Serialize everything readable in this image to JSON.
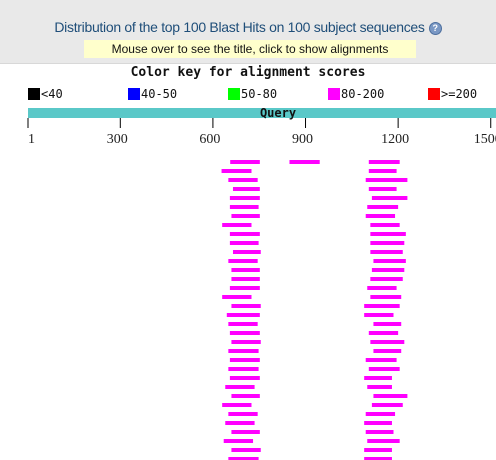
{
  "header": {
    "title": "Distribution of the top 100 Blast Hits on 100 subject sequences",
    "hint": "Mouse over to see the title, click to show alignments",
    "help_icon": "question-circle-icon"
  },
  "color_key": {
    "title": "Color key for alignment scores",
    "items": [
      {
        "label": "<40",
        "color": "#000000"
      },
      {
        "label": "40-50",
        "color": "#0000ff"
      },
      {
        "label": "50-80",
        "color": "#00ff00"
      },
      {
        "label": "80-200",
        "color": "#ff00ff"
      },
      {
        "label": ">=200",
        "color": "#ff0000"
      }
    ]
  },
  "chart_data": {
    "type": "bar",
    "query_label": "Query",
    "query_color": "#5ac8c8",
    "hit_color": "#ff00ff",
    "x_ticks": [
      1,
      300,
      600,
      900,
      1200,
      1500
    ],
    "xlim": [
      1,
      1550
    ],
    "hits": [
      [
        [
          656,
          752
        ],
        [
          848,
          946
        ],
        [
          1105,
          1205
        ]
      ],
      [
        [
          628,
          725
        ],
        [
          1105,
          1195
        ]
      ],
      [
        [
          650,
          745
        ],
        [
          1095,
          1230
        ]
      ],
      [
        [
          665,
          752
        ],
        [
          1105,
          1195
        ]
      ],
      [
        [
          655,
          752
        ],
        [
          1115,
          1230
        ]
      ],
      [
        [
          655,
          748
        ],
        [
          1100,
          1200
        ]
      ],
      [
        [
          660,
          752
        ],
        [
          1095,
          1190
        ]
      ],
      [
        [
          630,
          725
        ],
        [
          1110,
          1205
        ]
      ],
      [
        [
          655,
          752
        ],
        [
          1110,
          1225
        ]
      ],
      [
        [
          655,
          748
        ],
        [
          1110,
          1220
        ]
      ],
      [
        [
          665,
          755
        ],
        [
          1110,
          1215
        ]
      ],
      [
        [
          650,
          745
        ],
        [
          1120,
          1225
        ]
      ],
      [
        [
          660,
          752
        ],
        [
          1115,
          1220
        ]
      ],
      [
        [
          660,
          752
        ],
        [
          1110,
          1215
        ]
      ],
      [
        [
          655,
          752
        ],
        [
          1100,
          1195
        ]
      ],
      [
        [
          630,
          725
        ],
        [
          1110,
          1210
        ]
      ],
      [
        [
          660,
          755
        ],
        [
          1090,
          1205
        ]
      ],
      [
        [
          645,
          752
        ],
        [
          1090,
          1185
        ]
      ],
      [
        [
          650,
          745
        ],
        [
          1120,
          1210
        ]
      ],
      [
        [
          655,
          752
        ],
        [
          1105,
          1200
        ]
      ],
      [
        [
          660,
          755
        ],
        [
          1110,
          1220
        ]
      ],
      [
        [
          650,
          748
        ],
        [
          1120,
          1210
        ]
      ],
      [
        [
          655,
          752
        ],
        [
          1095,
          1195
        ]
      ],
      [
        [
          650,
          748
        ],
        [
          1105,
          1205
        ]
      ],
      [
        [
          655,
          752
        ],
        [
          1090,
          1180
        ]
      ],
      [
        [
          640,
          735
        ],
        [
          1100,
          1180
        ]
      ],
      [
        [
          660,
          752
        ],
        [
          1120,
          1230
        ]
      ],
      [
        [
          630,
          725
        ],
        [
          1115,
          1215
        ]
      ],
      [
        [
          650,
          745
        ],
        [
          1095,
          1190
        ]
      ],
      [
        [
          640,
          735
        ],
        [
          1090,
          1180
        ]
      ],
      [
        [
          660,
          752
        ],
        [
          1095,
          1185
        ]
      ],
      [
        [
          635,
          730
        ],
        [
          1100,
          1205
        ]
      ],
      [
        [
          660,
          755
        ],
        [
          1090,
          1180
        ]
      ],
      [
        [
          650,
          748
        ],
        [
          1090,
          1180
        ]
      ]
    ]
  }
}
